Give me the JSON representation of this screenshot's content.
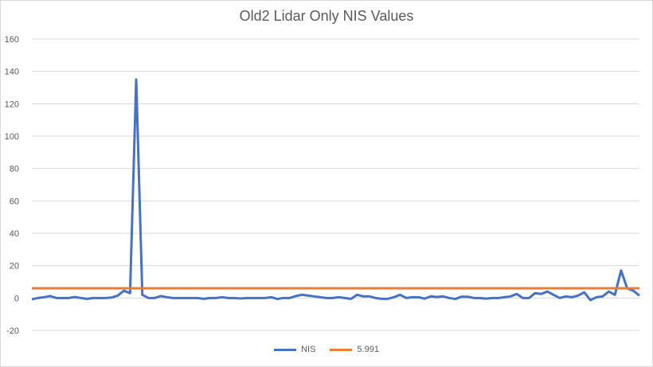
{
  "chart_data": {
    "type": "line",
    "title": "Old2 Lidar Only NIS Values",
    "xlabel": "",
    "ylabel": "",
    "ylim": [
      -20,
      160
    ],
    "yticks": [
      -20,
      0,
      20,
      40,
      60,
      80,
      100,
      120,
      140,
      160
    ],
    "ytick_labels": [
      "-20",
      "0",
      "20",
      "40",
      "60",
      "80",
      "100",
      "120",
      "140",
      "160"
    ],
    "grid": true,
    "legend_position": "bottom",
    "series": [
      {
        "name": "NIS",
        "color": "#4472c4",
        "values": [
          -0.8,
          0,
          0.5,
          1.2,
          0,
          0,
          0,
          0.6,
          0,
          -0.5,
          0,
          0,
          0,
          0.3,
          1.5,
          4.5,
          3,
          135,
          2,
          0,
          0,
          1.2,
          0.5,
          0,
          0,
          0,
          0,
          0,
          -0.5,
          0,
          0,
          0.5,
          0,
          0,
          -0.3,
          0,
          0,
          0,
          0,
          0.5,
          -0.6,
          0,
          0,
          1.2,
          2,
          1.5,
          1,
          0.5,
          0,
          0,
          0.5,
          0,
          -0.5,
          2,
          1,
          1,
          0,
          -0.5,
          -0.5,
          0.5,
          2,
          0,
          0.5,
          0.5,
          -0.4,
          1,
          0.6,
          1,
          0,
          -0.6,
          0.8,
          0.8,
          0,
          0,
          -0.4,
          0,
          0,
          0.5,
          1,
          2.5,
          0,
          0,
          3,
          2.5,
          4,
          2,
          0,
          1,
          0.5,
          1.5,
          3.5,
          -1.3,
          0.5,
          1,
          4,
          2,
          17,
          6,
          4.5,
          1.5
        ]
      },
      {
        "name": "5.991",
        "color": "#ed7d31",
        "constant": 5.991
      }
    ]
  }
}
